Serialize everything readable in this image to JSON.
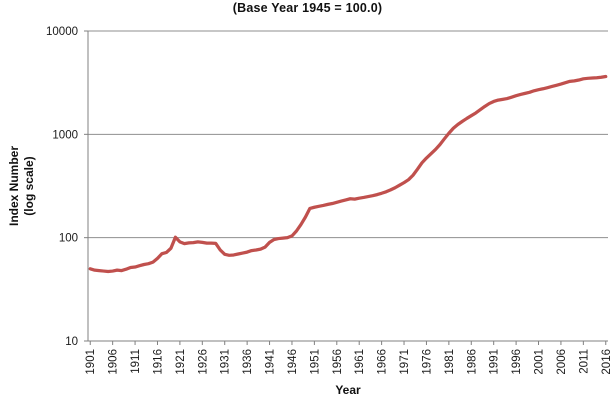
{
  "chart_data": {
    "type": "line",
    "title": "(Base Year 1945 = 100.0)",
    "xlabel": "Year",
    "ylabel_line1": "Index Number",
    "ylabel_line2": "(log scale)",
    "y_scale": "log10",
    "ylim": [
      10,
      10000
    ],
    "y_tick_labels": [
      "10",
      "100",
      "1000",
      "10000"
    ],
    "x_tick_labels": [
      "1901",
      "1906",
      "1911",
      "1916",
      "1921",
      "1926",
      "1931",
      "1936",
      "1941",
      "1946",
      "1951",
      "1956",
      "1961",
      "1966",
      "1971",
      "1976",
      "1981",
      "1986",
      "1991",
      "1996",
      "2001",
      "2006",
      "2011",
      "2016"
    ],
    "grid": "major-horizontal",
    "legend": "none",
    "line_color": "#C0504D",
    "gridline_color": "#8F8F8F",
    "axis_color": "#808080",
    "text_color": "#1A1A1A",
    "years": [
      1901,
      1902,
      1903,
      1904,
      1905,
      1906,
      1907,
      1908,
      1909,
      1910,
      1911,
      1912,
      1913,
      1914,
      1915,
      1916,
      1917,
      1918,
      1919,
      1920,
      1921,
      1922,
      1923,
      1924,
      1925,
      1926,
      1927,
      1928,
      1929,
      1930,
      1931,
      1932,
      1933,
      1934,
      1935,
      1936,
      1937,
      1938,
      1939,
      1940,
      1941,
      1942,
      1943,
      1944,
      1945,
      1946,
      1947,
      1948,
      1949,
      1950,
      1951,
      1952,
      1953,
      1954,
      1955,
      1956,
      1957,
      1958,
      1959,
      1960,
      1961,
      1962,
      1963,
      1964,
      1965,
      1966,
      1967,
      1968,
      1969,
      1970,
      1971,
      1972,
      1973,
      1974,
      1975,
      1976,
      1977,
      1978,
      1979,
      1980,
      1981,
      1982,
      1983,
      1984,
      1985,
      1986,
      1987,
      1988,
      1989,
      1990,
      1991,
      1992,
      1993,
      1994,
      1995,
      1996,
      1997,
      1998,
      1999,
      2000,
      2001,
      2002,
      2003,
      2004,
      2005,
      2006,
      2007,
      2008,
      2009,
      2010,
      2011,
      2012,
      2013,
      2014,
      2015,
      2016
    ],
    "values": [
      50,
      48.5,
      48,
      47.5,
      47,
      47.5,
      48.5,
      48,
      49.5,
      51.5,
      52,
      53.5,
      55,
      56,
      58,
      63,
      70,
      72,
      79,
      101,
      91,
      87.5,
      89,
      89.5,
      91,
      90,
      88.5,
      88.5,
      88,
      76,
      69,
      67.5,
      68,
      69.5,
      71,
      72.5,
      75,
      76,
      77.5,
      81,
      90,
      96,
      98,
      99,
      100,
      104,
      116,
      134,
      158,
      192,
      197,
      201,
      205,
      210,
      214,
      220,
      226,
      232,
      238,
      236,
      241,
      245,
      250,
      255,
      261,
      269,
      278,
      290,
      304,
      322,
      341,
      364,
      402,
      460,
      530,
      590,
      648,
      712,
      795,
      905,
      1025,
      1145,
      1245,
      1335,
      1425,
      1515,
      1610,
      1730,
      1860,
      1985,
      2080,
      2145,
      2180,
      2220,
      2290,
      2365,
      2435,
      2490,
      2550,
      2640,
      2705,
      2760,
      2830,
      2905,
      2985,
      3065,
      3160,
      3255,
      3290,
      3355,
      3445,
      3485,
      3505,
      3525,
      3565,
      3625
    ]
  }
}
